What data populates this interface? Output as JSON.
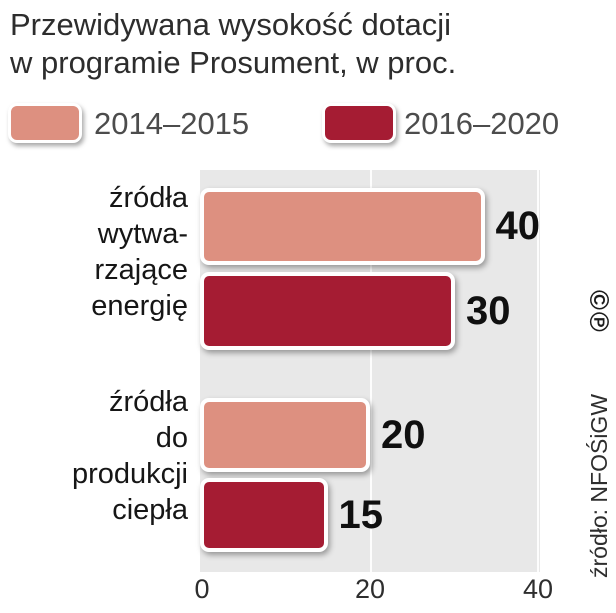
{
  "title": {
    "line1": "Przewidywana wysokość dotacji",
    "line2": "w programie Prosument, w proc."
  },
  "legend": [
    {
      "label": "2014–2015",
      "color": "#dd9080"
    },
    {
      "label": "2016–2020",
      "color": "#a51c33"
    }
  ],
  "chart_data": {
    "type": "bar",
    "orientation": "horizontal",
    "title": "Przewidywana wysokość dotacji w programie Prosument, w proc.",
    "categories": [
      "źródła wytwarzające energię",
      "źródła do produkcji ciepła"
    ],
    "categories_display": [
      "źródła\nwytwa-\nrzające\nenergię",
      "źródła\ndo\nprodukcji\nciepła"
    ],
    "series": [
      {
        "name": "2014–2015",
        "color": "#dd9080",
        "values": [
          40,
          20
        ]
      },
      {
        "name": "2016–2020",
        "color": "#a51c33",
        "values": [
          30,
          15
        ]
      }
    ],
    "xlim": [
      0,
      40
    ],
    "xticks": [
      "0",
      "20",
      "40"
    ],
    "legend_position": "top",
    "grid": true,
    "plot_background": "#e8e8e8"
  },
  "source": "źródło: NFOŚiGW",
  "copyright": "©℗"
}
